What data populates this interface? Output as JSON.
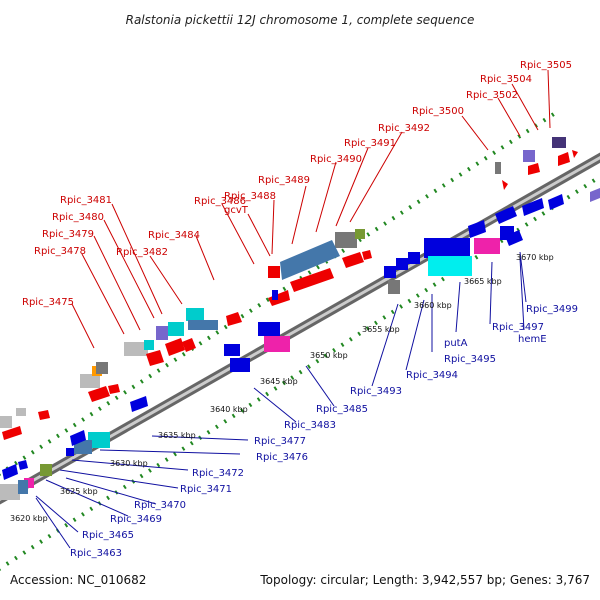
{
  "title": "Ralstonia pickettii 12J chromosome 1, complete sequence",
  "footer": {
    "accession": "Accession: NC_010682",
    "summary": "Topology: circular; Length: 3,942,557 bp; Genes: 3,767"
  },
  "scale_labels": [
    "3620 kbp",
    "3625 kbp",
    "3630 kbp",
    "3635 kbp",
    "3640 kbp",
    "3645 kbp",
    "3650 kbp",
    "3655 kbp",
    "3660 kbp",
    "3665 kbp",
    "3670 kbp"
  ],
  "top_labels": [
    "Rpic_3505",
    "Rpic_3504",
    "Rpic_3502",
    "Rpic_3500",
    "Rpic_3492",
    "Rpic_3491",
    "Rpic_3490",
    "Rpic_3489",
    "Rpic_3488",
    "gcvT",
    "Rpic_3486",
    "Rpic_3484",
    "Rpic_3482",
    "Rpic_3481",
    "Rpic_3480",
    "Rpic_3479",
    "Rpic_3478",
    "Rpic_3475"
  ],
  "bottom_labels": [
    "Rpic_3499",
    "hemE",
    "Rpic_3497",
    "putA",
    "Rpic_3495",
    "Rpic_3494",
    "Rpic_3493",
    "Rpic_3485",
    "Rpic_3483",
    "Rpic_3477",
    "Rpic_3476",
    "Rpic_3472",
    "Rpic_3471",
    "Rpic_3470",
    "Rpic_3469",
    "Rpic_3465",
    "Rpic_3463"
  ],
  "colors": {
    "forward_gene": "#ee0000",
    "reverse_gene": "#0000dd",
    "backbone": "#888888",
    "top_label": "#cc0000",
    "bottom_label": "#1010a0",
    "tick_dots": "#228822",
    "cyan": "#00dddd",
    "steel": "#4477aa",
    "magenta": "#ee22aa",
    "purple": "#7755cc",
    "gray": "#777777",
    "light_gray": "#bbbbbb",
    "olive": "#779933",
    "orange": "#ff9900"
  }
}
